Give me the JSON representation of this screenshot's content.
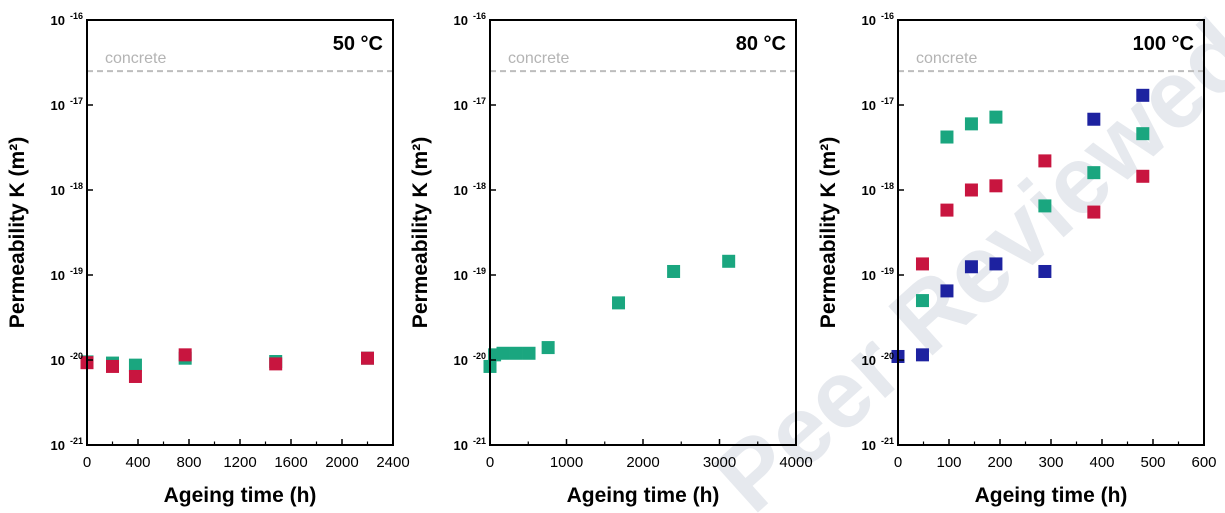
{
  "chart_data": [
    {
      "type": "scatter",
      "title": "50 °C",
      "xlabel": "Ageing time (h)",
      "ylabel": "Permeability K (m²)",
      "xlim": [
        0,
        2400
      ],
      "xticks": [
        "0",
        "400",
        "800",
        "1200",
        "1600",
        "2000",
        "2400"
      ],
      "yscale": "log",
      "ylim": [
        1e-21,
        1e-16
      ],
      "yticks": [
        -21,
        -20,
        -19,
        -18,
        -17,
        -16
      ],
      "reference_line": {
        "label": "concrete",
        "y": 2.5e-17
      },
      "series": [
        {
          "color": "#1aa67f",
          "points": [
            [
              0,
              9.5e-21
            ],
            [
              200,
              9.2e-21
            ],
            [
              380,
              8.7e-21
            ],
            [
              770,
              1.05e-20
            ],
            [
              1480,
              9.6e-21
            ],
            [
              2200,
              1.05e-20
            ]
          ]
        },
        {
          "color": "#c8153f",
          "points": [
            [
              0,
              9.3e-21
            ],
            [
              200,
              8.4e-21
            ],
            [
              380,
              6.4e-21
            ],
            [
              770,
              1.15e-20
            ],
            [
              1480,
              9e-21
            ],
            [
              2200,
              1.05e-20
            ]
          ]
        }
      ]
    },
    {
      "type": "scatter",
      "title": "80 °C",
      "xlabel": "Ageing time (h)",
      "ylabel": "Permeability K (m²)",
      "xlim": [
        0,
        4000
      ],
      "xticks": [
        "0",
        "1000",
        "2000",
        "3000",
        "4000"
      ],
      "yscale": "log",
      "ylim": [
        1e-21,
        1e-16
      ],
      "yticks": [
        -21,
        -20,
        -19,
        -18,
        -17,
        -16
      ],
      "reference_line": {
        "label": "concrete",
        "y": 2.5e-17
      },
      "series": [
        {
          "color": "#1aa67f",
          "points": [
            [
              0,
              8.4e-21
            ],
            [
              60,
              1.15e-20
            ],
            [
              170,
              1.2e-20
            ],
            [
              340,
              1.2e-20
            ],
            [
              510,
              1.2e-20
            ],
            [
              760,
              1.4e-20
            ],
            [
              1680,
              4.7e-20
            ],
            [
              2400,
              1.1e-19
            ],
            [
              3120,
              1.45e-19
            ]
          ]
        }
      ]
    },
    {
      "type": "scatter",
      "title": "100 °C",
      "xlabel": "Ageing time (h)",
      "ylabel": "Permeability K (m²)",
      "xlim": [
        0,
        600
      ],
      "xticks": [
        "0",
        "100",
        "200",
        "300",
        "400",
        "500",
        "600"
      ],
      "yscale": "log",
      "ylim": [
        1e-21,
        1e-16
      ],
      "yticks": [
        -21,
        -20,
        -19,
        -18,
        -17,
        -16
      ],
      "reference_line": {
        "label": "concrete",
        "y": 2.5e-17
      },
      "series": [
        {
          "color": "#1aa67f",
          "points": [
            [
              48,
              5e-20
            ],
            [
              96,
              4.2e-18
            ],
            [
              144,
              6e-18
            ],
            [
              192,
              7.2e-18
            ],
            [
              288,
              6.5e-19
            ],
            [
              384,
              1.6e-18
            ],
            [
              480,
              4.6e-18
            ]
          ]
        },
        {
          "color": "#c8153f",
          "points": [
            [
              48,
              1.35e-19
            ],
            [
              96,
              5.8e-19
            ],
            [
              144,
              1e-18
            ],
            [
              192,
              1.12e-18
            ],
            [
              288,
              2.2e-18
            ],
            [
              384,
              5.5e-19
            ],
            [
              480,
              1.45e-18
            ]
          ]
        },
        {
          "color": "#1d22a0",
          "points": [
            [
              0,
              1.1e-20
            ],
            [
              48,
              1.15e-20
            ],
            [
              96,
              6.5e-20
            ],
            [
              144,
              1.25e-19
            ],
            [
              192,
              1.35e-19
            ],
            [
              288,
              1.1e-19
            ],
            [
              384,
              6.8e-18
            ],
            [
              480,
              1.3e-17
            ]
          ]
        }
      ]
    }
  ],
  "watermark": {
    "text": "Peer Reviewed",
    "color": "#e6e9ee"
  }
}
